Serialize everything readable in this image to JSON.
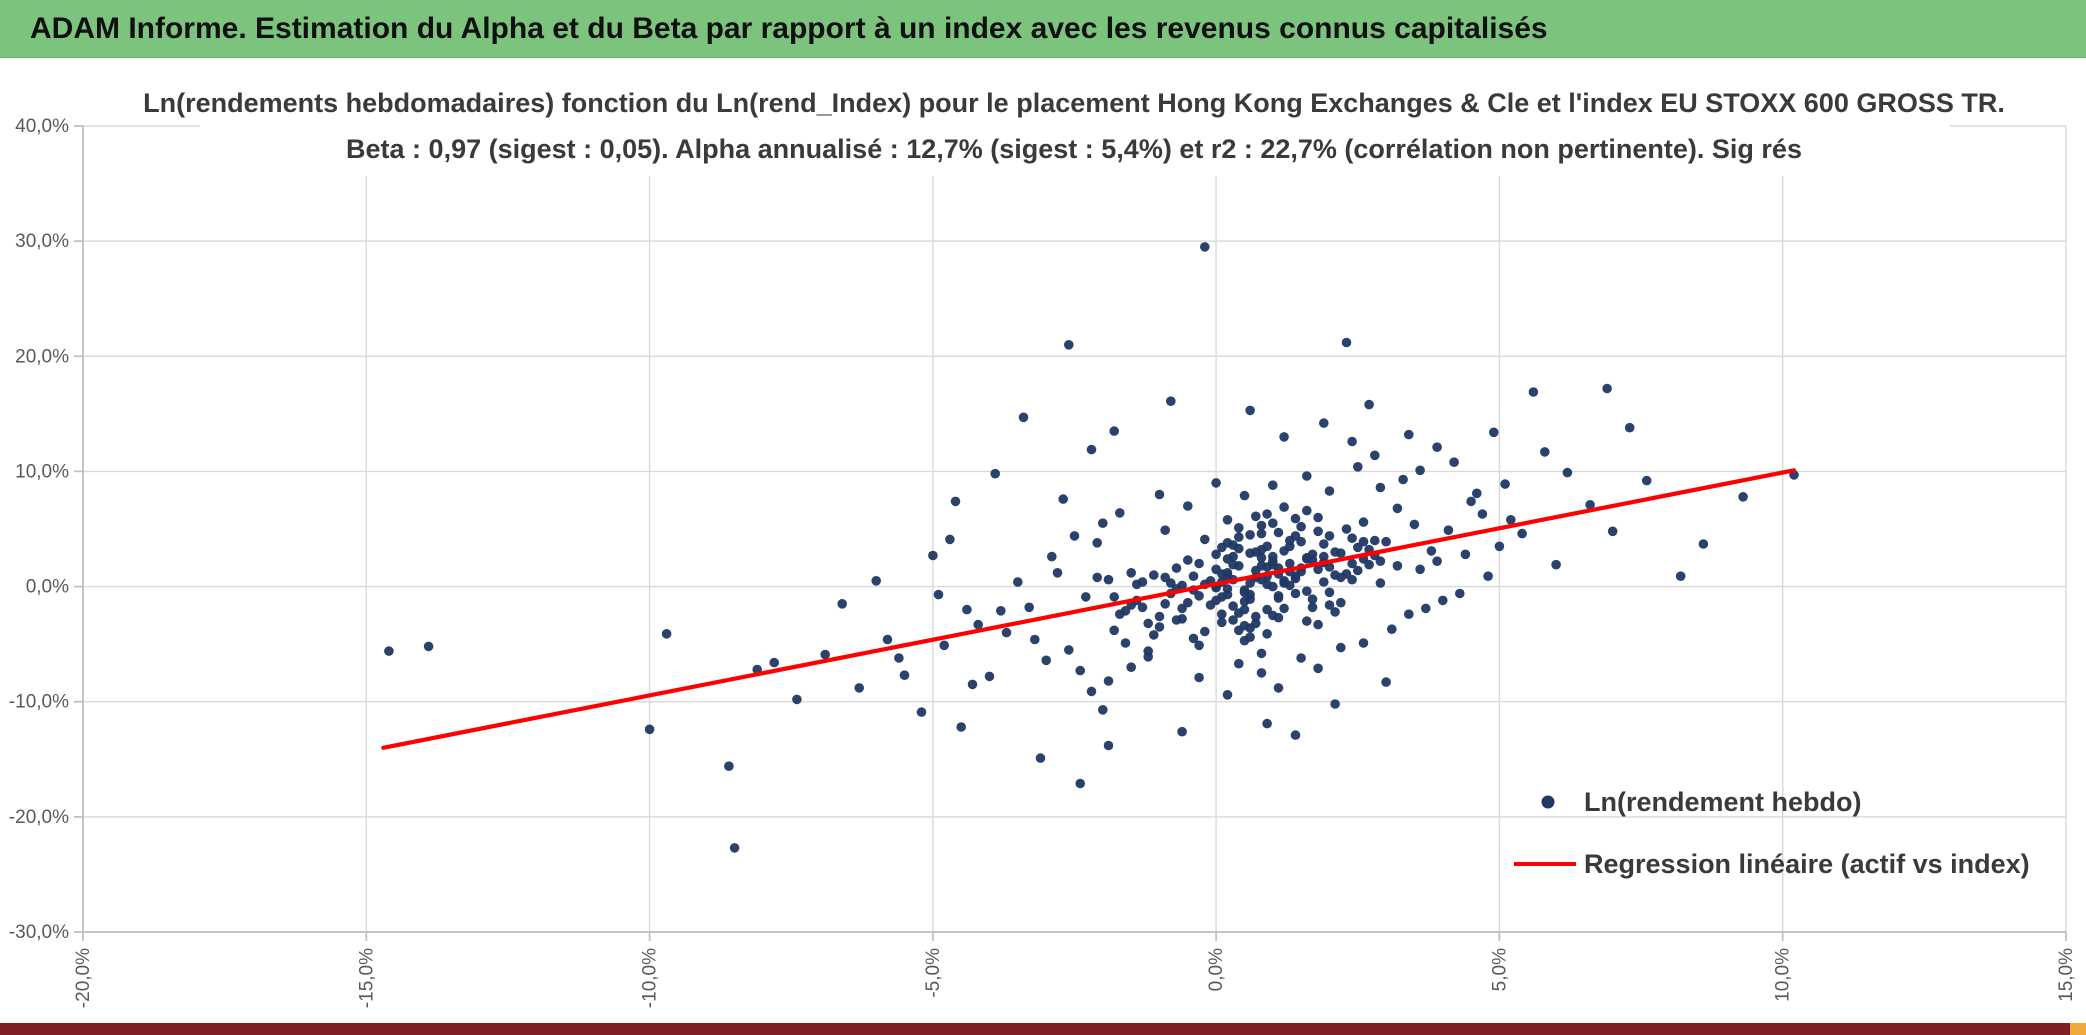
{
  "header": {
    "title": "ADAM Informe. Estimation du Alpha et du Beta par rapport à un index avec les revenus connus capitalisés"
  },
  "colors": {
    "header_bg": "#7CC47E",
    "footer_bg": "#7D1F24",
    "corner_accent": "#F0A93C"
  },
  "chart_data": {
    "type": "scatter",
    "title_line1": "Ln(rendements hebdomadaires) fonction du Ln(rend_Index) pour le placement Hong Kong Exchanges & Cle et l'index EU STOXX 600 GROSS TR.",
    "title_line2": "Beta : 0,97 (sigest : 0,05). Alpha annualisé : 12,7% (sigest : 5,4%) et r2 : 22,7% (corrélation non pertinente). Sig rés",
    "xlim": [
      -20,
      15
    ],
    "ylim": [
      -30,
      40
    ],
    "x_ticks": [
      -20,
      -15,
      -10,
      -5,
      0,
      5,
      10,
      15
    ],
    "x_tick_labels": [
      "-20,0%",
      "-15,0%",
      "-10,0%",
      "-5,0%",
      "0,0%",
      "5,0%",
      "10,0%",
      "15,0%"
    ],
    "y_ticks": [
      40,
      30,
      20,
      10,
      0,
      -10,
      -20,
      -30
    ],
    "y_tick_labels": [
      "40,0%",
      "30,0%",
      "20,0%",
      "10,0%",
      "0,0%",
      "-10,0%",
      "-20,0%",
      "-30,0%"
    ],
    "grid": true,
    "grid_color": "#D9D9D9",
    "axis_color": "#BFBFBF",
    "tick_label_color": "#595959",
    "point_color": "#1F3864",
    "line_color": "#FF0000",
    "legend_position": "inside-bottom-right",
    "legend": [
      {
        "label": "Ln(rendement hebdo)",
        "marker": "dot"
      },
      {
        "label": "Regression linéaire (actif vs index)",
        "marker": "line"
      }
    ],
    "regression": {
      "beta": "0,97",
      "beta_sigest": "0,05",
      "alpha_annualise": "12,7%",
      "alpha_sigest": "5,4%",
      "r2": "22,7%",
      "x1": -14.7,
      "y1": -14.0,
      "x2": 10.2,
      "y2": 10.1
    },
    "points": [
      [
        -1.4,
        0.2
      ],
      [
        -0.9,
        -1.5
      ],
      [
        -0.3,
        2.0
      ],
      [
        0.1,
        -3.1
      ],
      [
        0.4,
        1.8
      ],
      [
        0.8,
        4.6
      ],
      [
        1.2,
        -1.9
      ],
      [
        1.6,
        2.4
      ],
      [
        2.1,
        1.0
      ],
      [
        2.6,
        3.9
      ],
      [
        -0.6,
        -2.8
      ],
      [
        0.2,
        0.7
      ],
      [
        0.9,
        3.5
      ],
      [
        1.4,
        -0.6
      ],
      [
        -1.1,
        -4.2
      ],
      [
        0.6,
        2.9
      ],
      [
        1.9,
        0.4
      ],
      [
        0.0,
        -1.2
      ],
      [
        -0.2,
        4.1
      ],
      [
        1.0,
        -2.5
      ],
      [
        2.3,
        5.0
      ],
      [
        0.5,
        -4.7
      ],
      [
        -0.7,
        1.6
      ],
      [
        1.3,
        0.1
      ],
      [
        0.3,
        2.6
      ],
      [
        -1.6,
        -2.1
      ],
      [
        0.7,
        6.1
      ],
      [
        1.8,
        -3.3
      ],
      [
        2.9,
        2.2
      ],
      [
        -0.4,
        0.9
      ],
      [
        1.1,
        -0.8
      ],
      [
        0.2,
        3.8
      ],
      [
        -1.2,
        -5.6
      ],
      [
        1.5,
        1.3
      ],
      [
        0.9,
        -2.0
      ],
      [
        2.0,
        4.4
      ],
      [
        -0.8,
        0.3
      ],
      [
        0.4,
        -3.8
      ],
      [
        1.7,
        2.8
      ],
      [
        0.1,
        1.1
      ],
      [
        -0.1,
        -1.6
      ],
      [
        2.4,
        0.6
      ],
      [
        0.8,
        5.3
      ],
      [
        -1.8,
        -0.9
      ],
      [
        1.2,
        3.1
      ],
      [
        0.6,
        -4.4
      ],
      [
        2.7,
        1.9
      ],
      [
        -0.5,
        2.3
      ],
      [
        1.0,
        0.0
      ],
      [
        0.3,
        -2.9
      ],
      [
        1.6,
        6.6
      ],
      [
        -1.0,
        -3.5
      ],
      [
        0.0,
        1.5
      ],
      [
        2.2,
        -1.4
      ],
      [
        0.7,
        0.8
      ],
      [
        1.3,
        4.0
      ],
      [
        -1.5,
        1.2
      ],
      [
        0.5,
        -0.3
      ],
      [
        1.9,
        2.1
      ],
      [
        -0.3,
        -5.1
      ],
      [
        0.9,
        1.7
      ],
      [
        2.5,
        3.4
      ],
      [
        -0.6,
        0.1
      ],
      [
        1.1,
        -2.7
      ],
      [
        0.2,
        5.8
      ],
      [
        1.4,
        0.9
      ],
      [
        -1.3,
        -1.8
      ],
      [
        0.8,
        2.5
      ],
      [
        2.0,
        -0.5
      ],
      [
        0.4,
        3.3
      ],
      [
        -0.9,
        4.9
      ],
      [
        1.7,
        -1.1
      ],
      [
        0.1,
        0.4
      ],
      [
        2.8,
        2.7
      ],
      [
        -0.2,
        -3.9
      ],
      [
        1.0,
        1.9
      ],
      [
        0.6,
        -0.7
      ],
      [
        1.5,
        5.2
      ],
      [
        -1.7,
        -2.4
      ],
      [
        0.3,
        0.6
      ],
      [
        2.1,
        -2.2
      ],
      [
        0.7,
        3.0
      ],
      [
        -1.1,
        1.0
      ],
      [
        1.2,
        6.9
      ],
      [
        0.0,
        -0.1
      ],
      [
        1.8,
        1.5
      ],
      [
        -0.4,
        -4.5
      ],
      [
        0.9,
        0.2
      ],
      [
        2.4,
        4.2
      ],
      [
        0.5,
        -1.3
      ],
      [
        1.3,
        2.0
      ],
      [
        -0.8,
        -0.6
      ],
      [
        0.2,
        1.2
      ],
      [
        1.6,
        -3.0
      ],
      [
        2.9,
        0.3
      ],
      [
        0.6,
        4.5
      ],
      [
        -1.4,
        -1.2
      ],
      [
        1.1,
        1.6
      ],
      [
        0.4,
        -2.3
      ],
      [
        2.2,
        2.9
      ],
      [
        0.8,
        -5.8
      ],
      [
        1.9,
        3.7
      ],
      [
        -0.1,
        0.5
      ],
      [
        1.0,
        2.2
      ],
      [
        0.3,
        -1.7
      ],
      [
        2.6,
        5.6
      ],
      [
        -0.7,
        -2.9
      ],
      [
        1.4,
        0.7
      ],
      [
        0.7,
        1.4
      ],
      [
        0.1,
        -0.9
      ],
      [
        1.5,
        3.9
      ],
      [
        -1.9,
        0.6
      ],
      [
        0.5,
        -3.4
      ],
      [
        2.3,
        1.1
      ],
      [
        0.9,
        6.3
      ],
      [
        0.2,
        -0.2
      ],
      [
        1.7,
        2.3
      ],
      [
        -0.5,
        -1.4
      ],
      [
        1.1,
        4.7
      ],
      [
        0.6,
        0.3
      ],
      [
        2.0,
        -1.6
      ],
      [
        0.0,
        2.8
      ],
      [
        1.2,
        0.5
      ],
      [
        -1.2,
        -3.2
      ],
      [
        0.8,
        1.8
      ],
      [
        1.6,
        -0.4
      ],
      [
        0.4,
        5.1
      ],
      [
        2.7,
        3.2
      ],
      [
        -0.3,
        -0.8
      ],
      [
        1.0,
        2.6
      ],
      [
        0.7,
        -2.6
      ],
      [
        1.3,
        1.3
      ],
      [
        -1.6,
        -4.9
      ],
      [
        0.2,
        2.4
      ],
      [
        1.8,
        4.8
      ],
      [
        0.5,
        -0.5
      ],
      [
        2.4,
        2.0
      ],
      [
        -0.9,
        0.8
      ],
      [
        1.1,
        -1.0
      ],
      [
        0.3,
        3.6
      ],
      [
        1.4,
        5.9
      ],
      [
        -0.6,
        -1.9
      ],
      [
        0.9,
        0.9
      ],
      [
        2.1,
        3.0
      ],
      [
        0.1,
        -2.4
      ],
      [
        1.5,
        1.6
      ],
      [
        -1.3,
        0.4
      ],
      [
        0.6,
        -3.6
      ],
      [
        1.9,
        2.6
      ],
      [
        0.0,
        0.0
      ],
      [
        2.5,
        1.4
      ],
      [
        0.4,
        4.3
      ],
      [
        -1.0,
        -2.6
      ],
      [
        1.2,
        0.3
      ],
      [
        0.8,
        3.2
      ],
      [
        1.7,
        -1.8
      ],
      [
        0.2,
        1.0
      ],
      [
        2.8,
        4.0
      ],
      [
        -0.4,
        -0.3
      ],
      [
        1.0,
        5.5
      ],
      [
        0.6,
        -1.1
      ],
      [
        1.6,
        2.5
      ],
      [
        -1.8,
        -3.8
      ],
      [
        0.3,
        1.9
      ],
      [
        2.2,
        0.8
      ],
      [
        0.9,
        -4.1
      ],
      [
        1.3,
        3.5
      ],
      [
        -0.2,
        0.2
      ],
      [
        1.1,
        1.1
      ],
      [
        0.5,
        -2.0
      ],
      [
        1.8,
        6.0
      ],
      [
        -0.7,
        -0.2
      ],
      [
        0.1,
        3.4
      ],
      [
        2.0,
        1.7
      ],
      [
        0.7,
        -3.2
      ],
      [
        1.4,
        4.4
      ],
      [
        -1.5,
        -1.6
      ],
      [
        0.8,
        0.6
      ],
      [
        2.6,
        2.4
      ],
      [
        0.2,
        -0.7
      ],
      [
        -3.2,
        -4.6
      ],
      [
        -2.8,
        1.2
      ],
      [
        -2.4,
        -7.3
      ],
      [
        -2.1,
        3.8
      ],
      [
        -3.8,
        -2.1
      ],
      [
        -2.6,
        -5.5
      ],
      [
        -3.5,
        0.4
      ],
      [
        -2.2,
        -9.1
      ],
      [
        -4.2,
        -3.3
      ],
      [
        -2.9,
        2.6
      ],
      [
        3.2,
        6.8
      ],
      [
        3.6,
        1.5
      ],
      [
        4.1,
        4.9
      ],
      [
        3.4,
        -2.4
      ],
      [
        4.5,
        7.4
      ],
      [
        3.8,
        3.1
      ],
      [
        4.8,
        0.9
      ],
      [
        3.3,
        9.3
      ],
      [
        5.2,
        5.8
      ],
      [
        4.0,
        -1.2
      ],
      [
        -1.9,
        -8.2
      ],
      [
        -2.0,
        5.5
      ],
      [
        -2.3,
        -0.9
      ],
      [
        -3.0,
        -6.4
      ],
      [
        -2.5,
        4.4
      ],
      [
        -3.3,
        -1.8
      ],
      [
        -2.7,
        7.6
      ],
      [
        -3.7,
        -4.0
      ],
      [
        -2.1,
        0.8
      ],
      [
        -4.0,
        -7.8
      ],
      [
        2.9,
        8.6
      ],
      [
        3.1,
        -3.7
      ],
      [
        3.9,
        2.2
      ],
      [
        3.5,
        5.4
      ],
      [
        4.3,
        -0.6
      ],
      [
        3.0,
        3.9
      ],
      [
        4.6,
        8.1
      ],
      [
        3.7,
        -1.9
      ],
      [
        5.0,
        3.5
      ],
      [
        3.2,
        1.8
      ],
      [
        -1.7,
        6.4
      ],
      [
        -1.5,
        -7.0
      ],
      [
        1.0,
        8.8
      ],
      [
        0.5,
        7.9
      ],
      [
        1.6,
        9.6
      ],
      [
        -0.5,
        7.0
      ],
      [
        2.0,
        8.3
      ],
      [
        0.0,
        9.0
      ],
      [
        2.5,
        10.4
      ],
      [
        -1.0,
        8.0
      ],
      [
        0.8,
        -7.5
      ],
      [
        1.5,
        -6.2
      ],
      [
        -0.3,
        -7.9
      ],
      [
        2.2,
        -5.3
      ],
      [
        0.4,
        -6.7
      ],
      [
        1.1,
        -8.8
      ],
      [
        -1.2,
        -6.1
      ],
      [
        1.8,
        -7.1
      ],
      [
        2.6,
        -4.9
      ],
      [
        0.2,
        -9.4
      ],
      [
        4.2,
        10.8
      ],
      [
        3.9,
        12.1
      ],
      [
        2.8,
        11.4
      ],
      [
        3.4,
        13.2
      ],
      [
        2.4,
        12.6
      ],
      [
        4.7,
        6.3
      ],
      [
        5.4,
        4.6
      ],
      [
        5.1,
        8.9
      ],
      [
        4.4,
        2.8
      ],
      [
        3.6,
        10.1
      ],
      [
        -0.2,
        29.5
      ],
      [
        -2.6,
        21.0
      ],
      [
        2.3,
        21.2
      ],
      [
        6.9,
        17.2
      ],
      [
        7.3,
        13.8
      ],
      [
        -8.5,
        -22.7
      ],
      [
        -8.6,
        -15.6
      ],
      [
        -2.4,
        -17.1
      ],
      [
        -14.6,
        -5.6
      ],
      [
        -13.9,
        -5.2
      ],
      [
        -10.0,
        -12.4
      ],
      [
        -9.7,
        -4.1
      ],
      [
        -7.4,
        -9.8
      ],
      [
        -6.9,
        -5.9
      ],
      [
        -7.8,
        -6.6
      ],
      [
        -6.3,
        -8.8
      ],
      [
        -5.8,
        -4.6
      ],
      [
        -6.6,
        -1.5
      ],
      [
        -5.5,
        -7.7
      ],
      [
        -5.2,
        -10.9
      ],
      [
        -4.8,
        -5.1
      ],
      [
        -4.5,
        -12.2
      ],
      [
        -5.0,
        2.7
      ],
      [
        -6.0,
        0.5
      ],
      [
        -4.3,
        -8.5
      ],
      [
        -4.7,
        4.1
      ],
      [
        -5.6,
        -6.2
      ],
      [
        -4.4,
        -2.0
      ],
      [
        -8.1,
        -7.2
      ],
      [
        -4.9,
        -0.7
      ],
      [
        6.2,
        9.9
      ],
      [
        6.6,
        7.1
      ],
      [
        5.8,
        11.7
      ],
      [
        7.0,
        4.8
      ],
      [
        6.0,
        1.9
      ],
      [
        7.6,
        9.2
      ],
      [
        8.2,
        0.9
      ],
      [
        8.6,
        3.7
      ],
      [
        9.3,
        7.8
      ],
      [
        10.2,
        9.7
      ],
      [
        -3.4,
        14.7
      ],
      [
        -1.8,
        13.5
      ],
      [
        0.6,
        15.3
      ],
      [
        1.9,
        14.2
      ],
      [
        -0.8,
        16.1
      ],
      [
        2.7,
        15.8
      ],
      [
        1.2,
        13.0
      ],
      [
        -1.9,
        -13.8
      ],
      [
        -0.6,
        -12.6
      ],
      [
        0.9,
        -11.9
      ],
      [
        -2.0,
        -10.7
      ],
      [
        2.1,
        -10.2
      ],
      [
        1.4,
        -12.9
      ],
      [
        -3.9,
        9.8
      ],
      [
        -4.6,
        7.4
      ],
      [
        3.0,
        -8.3
      ],
      [
        4.9,
        13.4
      ],
      [
        5.6,
        16.9
      ],
      [
        -2.2,
        11.9
      ],
      [
        -3.1,
        -14.9
      ]
    ]
  }
}
